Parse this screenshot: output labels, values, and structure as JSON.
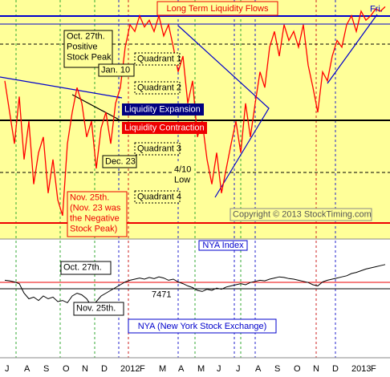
{
  "chart_data": [
    {
      "type": "line",
      "title": "Long Term Liquidity Flows",
      "ylim": [
        0,
        100
      ],
      "series": [
        {
          "name": "Liquidity",
          "color": "#ff0000",
          "values": [
            64,
            50,
            36,
            57,
            29,
            46,
            18,
            32,
            39,
            14,
            29,
            11,
            4,
            36,
            50,
            61,
            54,
            39,
            46,
            25,
            43,
            50,
            36,
            54,
            61,
            79,
            89,
            86,
            93,
            88,
            91,
            86,
            93,
            84,
            89,
            79,
            68,
            75,
            54,
            64,
            39,
            46,
            29,
            18,
            32,
            14,
            25,
            36,
            46,
            32,
            54,
            39,
            54,
            68,
            61,
            79,
            86,
            75,
            89,
            82,
            86,
            79,
            89,
            71,
            61,
            50,
            68,
            64,
            75,
            82,
            79,
            89,
            93,
            86,
            95,
            91,
            93,
            96,
            95,
            97
          ]
        }
      ],
      "annotations": [
        [
          "Oct. 27th.",
          "Positive",
          "Stock Peak"
        ],
        [
          "Jan. 10"
        ],
        [
          "Quadrant 1"
        ],
        [
          "Quadrant 2"
        ],
        [
          "Liquidity Expansion"
        ],
        [
          "Liquidity Contraction"
        ],
        [
          "Quadrant 3"
        ],
        [
          "Dec. 23"
        ],
        [
          "4/10",
          "Low"
        ],
        [
          "Quadrant 4"
        ],
        [
          "Nov. 25th.",
          "(Nov. 23 was",
          "the Negative",
          "Stock Peak)"
        ],
        [
          "Copyright © 2013 StockTiming.com"
        ],
        [
          "Fri."
        ]
      ]
    },
    {
      "type": "line",
      "title": "NYA Index",
      "subtitle": "NYA (New York Stock Exchange)",
      "ylim": [
        0,
        100
      ],
      "categories": [
        "J",
        null,
        null,
        null,
        "A",
        null,
        null,
        null,
        "S",
        null,
        null,
        null,
        "O",
        null,
        null,
        null,
        "N",
        null,
        null,
        null,
        "D",
        null,
        null,
        null,
        "2012",
        null,
        null,
        null,
        "F",
        null,
        null,
        null,
        "M",
        null,
        null,
        null,
        "A",
        null,
        null,
        null,
        "M",
        null,
        null,
        null,
        "J",
        null,
        null,
        null,
        "J",
        null,
        null,
        null,
        "A",
        null,
        null,
        null,
        "S",
        null,
        null,
        null,
        "O",
        null,
        null,
        null,
        "N",
        null,
        null,
        null,
        "D",
        null,
        null,
        null,
        "2013",
        null,
        null,
        null,
        "F",
        null,
        null,
        null
      ],
      "series": [
        {
          "name": "NYA",
          "color": "#000000",
          "values": [
            58,
            57,
            55,
            52,
            35,
            25,
            28,
            22,
            30,
            25,
            28,
            20,
            22,
            18,
            30,
            35,
            32,
            25,
            12,
            20,
            30,
            35,
            40,
            45,
            50,
            55,
            58,
            60,
            62,
            60,
            63,
            61,
            64,
            62,
            58,
            60,
            55,
            52,
            48,
            45,
            40,
            38,
            42,
            40,
            44,
            42,
            46,
            48,
            50,
            52,
            50,
            54,
            56,
            58,
            57,
            60,
            62,
            64,
            63,
            61,
            60,
            58,
            56,
            54,
            50,
            48,
            55,
            58,
            60,
            62,
            64,
            66,
            70,
            72,
            75,
            78,
            80,
            82,
            84,
            86
          ]
        }
      ],
      "annotations": [
        [
          "Oct. 27th."
        ],
        [
          "Nov. 25th."
        ],
        [
          "7471"
        ]
      ]
    }
  ]
}
